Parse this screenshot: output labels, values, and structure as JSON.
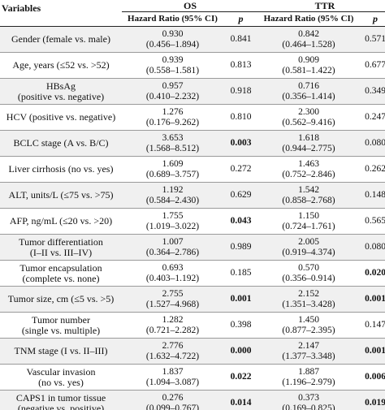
{
  "header": {
    "variables": "Variables",
    "groups": [
      "OS",
      "TTR"
    ],
    "hr_label": "Hazard Ratio (95% CI)",
    "p_label": "p"
  },
  "rows": [
    {
      "variable": [
        "Gender (female vs. male)"
      ],
      "os_hr": "0.930",
      "os_ci": "(0.456–1.894)",
      "os_p": "0.841",
      "os_bold": false,
      "ttr_hr": "0.842",
      "ttr_ci": "(0.464–1.528)",
      "ttr_p": "0.571",
      "ttr_bold": false
    },
    {
      "variable": [
        "Age, years (≤52 vs. >52)"
      ],
      "os_hr": "0.939",
      "os_ci": "(0.558–1.581)",
      "os_p": "0.813",
      "os_bold": false,
      "ttr_hr": "0.909",
      "ttr_ci": "(0.581–1.422)",
      "ttr_p": "0.677",
      "ttr_bold": false
    },
    {
      "variable": [
        "HBsAg",
        "(positive vs. negative)"
      ],
      "os_hr": "0.957",
      "os_ci": "(0.410–2.232)",
      "os_p": "0.918",
      "os_bold": false,
      "ttr_hr": "0.716",
      "ttr_ci": "(0.356–1.414)",
      "ttr_p": "0.349",
      "ttr_bold": false
    },
    {
      "variable": [
        "HCV (positive vs. negative)"
      ],
      "os_hr": "1.276",
      "os_ci": "(0.176–9.262)",
      "os_p": "0.810",
      "os_bold": false,
      "ttr_hr": "2.300",
      "ttr_ci": "(0.562–9.416)",
      "ttr_p": "0.247",
      "ttr_bold": false
    },
    {
      "variable": [
        "BCLC stage (A vs. B/C)"
      ],
      "os_hr": "3.653",
      "os_ci": "(1.568–8.512)",
      "os_p": "0.003",
      "os_bold": true,
      "ttr_hr": "1.618",
      "ttr_ci": "(0.944–2.775)",
      "ttr_p": "0.080",
      "ttr_bold": false
    },
    {
      "variable": [
        "Liver cirrhosis (no vs. yes)"
      ],
      "os_hr": "1.609",
      "os_ci": "(0.689–3.757)",
      "os_p": "0.272",
      "os_bold": false,
      "ttr_hr": "1.463",
      "ttr_ci": "(0.752–2.846)",
      "ttr_p": "0.262",
      "ttr_bold": false
    },
    {
      "variable": [
        "ALT, units/L (≤75 vs. >75)"
      ],
      "os_hr": "1.192",
      "os_ci": "(0.584–2.430)",
      "os_p": "0.629",
      "os_bold": false,
      "ttr_hr": "1.542",
      "ttr_ci": "(0.858–2.768)",
      "ttr_p": "0.148",
      "ttr_bold": false
    },
    {
      "variable": [
        "AFP, ng/mL (≤20 vs. >20)"
      ],
      "os_hr": "1.755",
      "os_ci": "(1.019–3.022)",
      "os_p": "0.043",
      "os_bold": true,
      "ttr_hr": "1.150",
      "ttr_ci": "(0.724–1.761)",
      "ttr_p": "0.565",
      "ttr_bold": false
    },
    {
      "variable": [
        "Tumor differentiation",
        "(I–II vs. III–IV)"
      ],
      "os_hr": "1.007",
      "os_ci": "(0.364–2.786)",
      "os_p": "0.989",
      "os_bold": false,
      "ttr_hr": "2.005",
      "ttr_ci": "(0.919–4.374)",
      "ttr_p": "0.080",
      "ttr_bold": false
    },
    {
      "variable": [
        "Tumor encapsulation",
        "(complete vs. none)"
      ],
      "os_hr": "0.693",
      "os_ci": "(0.403–1.192)",
      "os_p": "0.185",
      "os_bold": false,
      "ttr_hr": "0.570",
      "ttr_ci": "(0.356–0.914)",
      "ttr_p": "0.020",
      "ttr_bold": true
    },
    {
      "variable": [
        "Tumor size, cm (≤5 vs. >5)"
      ],
      "os_hr": "2.755",
      "os_ci": "(1.527–4.968)",
      "os_p": "0.001",
      "os_bold": true,
      "ttr_hr": "2.152",
      "ttr_ci": "(1.351–3.428)",
      "ttr_p": "0.001",
      "ttr_bold": true
    },
    {
      "variable": [
        "Tumor number",
        "(single vs. multiple)"
      ],
      "os_hr": "1.282",
      "os_ci": "(0.721–2.282)",
      "os_p": "0.398",
      "os_bold": false,
      "ttr_hr": "1.450",
      "ttr_ci": "(0.877–2.395)",
      "ttr_p": "0.147",
      "ttr_bold": false
    },
    {
      "variable": [
        "TNM stage (I vs. II–III)"
      ],
      "os_hr": "2.776",
      "os_ci": "(1.632–4.722)",
      "os_p": "0.000",
      "os_bold": true,
      "ttr_hr": "2.147",
      "ttr_ci": "(1.377–3.348)",
      "ttr_p": "0.001",
      "ttr_bold": true
    },
    {
      "variable": [
        "Vascular invasion",
        "(no vs. yes)"
      ],
      "os_hr": "1.837",
      "os_ci": "(1.094–3.087)",
      "os_p": "0.022",
      "os_bold": true,
      "ttr_hr": "1.887",
      "ttr_ci": "(1.196–2.979)",
      "ttr_p": "0.006",
      "ttr_bold": true
    },
    {
      "variable": [
        "CAPS1 in tumor tissue",
        "(negative vs. positive)"
      ],
      "os_hr": "0.276",
      "os_ci": "(0.099–0.767)",
      "os_p": "0.014",
      "os_bold": true,
      "ttr_hr": "0.373",
      "ttr_ci": "(0.169–0.825)",
      "ttr_p": "0.019",
      "ttr_bold": true
    }
  ]
}
